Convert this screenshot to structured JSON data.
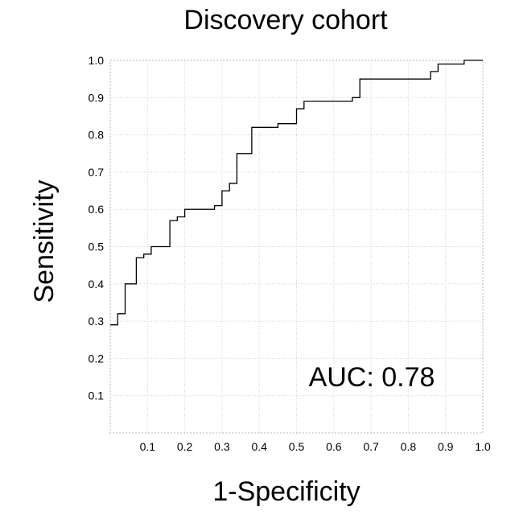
{
  "chart_data": {
    "type": "line",
    "title": "Discovery cohort",
    "xlabel": "1-Specificity",
    "ylabel": "Sensitivity",
    "annotation": "AUC: 0.78",
    "xlim": [
      0,
      1
    ],
    "ylim": [
      0,
      1
    ],
    "x_ticks": [
      "0.1",
      "0.2",
      "0.3",
      "0.4",
      "0.5",
      "0.6",
      "0.7",
      "0.8",
      "0.9",
      "1.0"
    ],
    "y_ticks": [
      "0.1",
      "0.2",
      "0.3",
      "0.4",
      "0.5",
      "0.6",
      "0.7",
      "0.8",
      "0.9",
      "1.0"
    ],
    "grid": true,
    "curve_color": "#000000",
    "series": [
      {
        "x": [
          0.0,
          0.02,
          0.02,
          0.04,
          0.04,
          0.06,
          0.06,
          0.07,
          0.07,
          0.09,
          0.09,
          0.11,
          0.11,
          0.16,
          0.16,
          0.18,
          0.18,
          0.2,
          0.2,
          0.24,
          0.24,
          0.28,
          0.28,
          0.3,
          0.3,
          0.32,
          0.32,
          0.34,
          0.34,
          0.38,
          0.38,
          0.45,
          0.45,
          0.5,
          0.5,
          0.52,
          0.52,
          0.65,
          0.65,
          0.67,
          0.67,
          0.86,
          0.86,
          0.88,
          0.88,
          0.95,
          0.95,
          1.0
        ],
        "y": [
          0.29,
          0.29,
          0.32,
          0.32,
          0.4,
          0.4,
          0.4,
          0.4,
          0.47,
          0.47,
          0.48,
          0.48,
          0.5,
          0.5,
          0.57,
          0.57,
          0.58,
          0.58,
          0.6,
          0.6,
          0.6,
          0.6,
          0.61,
          0.61,
          0.65,
          0.65,
          0.67,
          0.67,
          0.75,
          0.75,
          0.82,
          0.82,
          0.83,
          0.83,
          0.87,
          0.87,
          0.89,
          0.89,
          0.9,
          0.9,
          0.95,
          0.95,
          0.97,
          0.97,
          0.99,
          0.99,
          1.0,
          1.0
        ]
      }
    ]
  }
}
